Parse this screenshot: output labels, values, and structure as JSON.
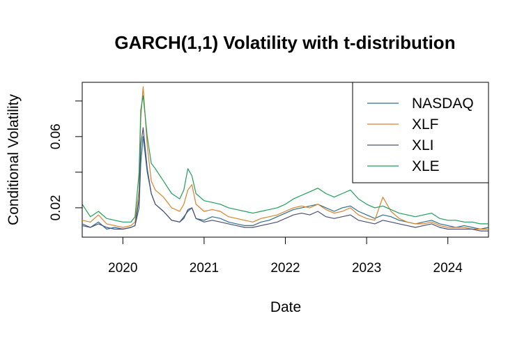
{
  "chart_data": {
    "type": "line",
    "title": "GARCH(1,1) Volatility with t-distribution",
    "xlabel": "Date",
    "ylabel": "Conditional Volatility",
    "xlim": [
      2019.5,
      2024.5
    ],
    "ylim": [
      0.0035,
      0.0905
    ],
    "x_ticks": [
      2020,
      2021,
      2022,
      2023,
      2024
    ],
    "x_tick_labels": [
      "2020",
      "2021",
      "2022",
      "2023",
      "2024"
    ],
    "y_ticks": [
      0.02,
      0.04,
      0.06,
      0.08
    ],
    "y_tick_labels": [
      "0.02",
      "",
      "0.06",
      ""
    ],
    "grid": false,
    "legend_position": "top-right",
    "series": [
      {
        "name": "NASDAQ",
        "color": "#2E6E8E",
        "x": [
          2019.5,
          2019.6,
          2019.7,
          2019.8,
          2019.9,
          2020.0,
          2020.1,
          2020.15,
          2020.2,
          2020.22,
          2020.25,
          2020.3,
          2020.35,
          2020.4,
          2020.5,
          2020.6,
          2020.7,
          2020.75,
          2020.8,
          2020.85,
          2020.9,
          2021.0,
          2021.1,
          2021.2,
          2021.3,
          2021.4,
          2021.5,
          2021.6,
          2021.7,
          2021.8,
          2021.9,
          2022.0,
          2022.1,
          2022.2,
          2022.3,
          2022.4,
          2022.5,
          2022.6,
          2022.7,
          2022.8,
          2022.9,
          2023.0,
          2023.1,
          2023.2,
          2023.3,
          2023.4,
          2023.5,
          2023.6,
          2023.7,
          2023.8,
          2023.9,
          2024.0,
          2024.1,
          2024.2,
          2024.3,
          2024.4,
          2024.5
        ],
        "values": [
          0.011,
          0.009,
          0.012,
          0.008,
          0.009,
          0.008,
          0.009,
          0.01,
          0.02,
          0.045,
          0.06,
          0.04,
          0.028,
          0.022,
          0.018,
          0.013,
          0.012,
          0.015,
          0.018,
          0.02,
          0.014,
          0.013,
          0.015,
          0.014,
          0.012,
          0.011,
          0.01,
          0.01,
          0.012,
          0.013,
          0.015,
          0.017,
          0.019,
          0.02,
          0.021,
          0.022,
          0.02,
          0.018,
          0.02,
          0.021,
          0.018,
          0.016,
          0.014,
          0.016,
          0.015,
          0.013,
          0.012,
          0.011,
          0.012,
          0.013,
          0.011,
          0.01,
          0.009,
          0.01,
          0.009,
          0.008,
          0.009
        ]
      },
      {
        "name": "XLF",
        "color": "#D9822B",
        "x": [
          2019.5,
          2019.6,
          2019.7,
          2019.8,
          2019.9,
          2020.0,
          2020.1,
          2020.15,
          2020.2,
          2020.22,
          2020.25,
          2020.3,
          2020.35,
          2020.4,
          2020.5,
          2020.6,
          2020.7,
          2020.75,
          2020.8,
          2020.85,
          2020.9,
          2021.0,
          2021.1,
          2021.2,
          2021.3,
          2021.4,
          2021.5,
          2021.6,
          2021.7,
          2021.8,
          2021.9,
          2022.0,
          2022.1,
          2022.2,
          2022.3,
          2022.4,
          2022.5,
          2022.6,
          2022.7,
          2022.8,
          2022.9,
          2023.0,
          2023.1,
          2023.2,
          2023.3,
          2023.4,
          2023.5,
          2023.6,
          2023.7,
          2023.8,
          2023.9,
          2024.0,
          2024.1,
          2024.2,
          2024.3,
          2024.4,
          2024.5
        ],
        "values": [
          0.013,
          0.012,
          0.016,
          0.011,
          0.01,
          0.009,
          0.01,
          0.012,
          0.03,
          0.07,
          0.088,
          0.055,
          0.035,
          0.03,
          0.026,
          0.02,
          0.018,
          0.022,
          0.03,
          0.033,
          0.022,
          0.018,
          0.019,
          0.018,
          0.015,
          0.014,
          0.013,
          0.012,
          0.014,
          0.015,
          0.016,
          0.018,
          0.02,
          0.021,
          0.02,
          0.022,
          0.019,
          0.017,
          0.018,
          0.02,
          0.016,
          0.014,
          0.013,
          0.026,
          0.018,
          0.014,
          0.012,
          0.011,
          0.011,
          0.012,
          0.01,
          0.009,
          0.009,
          0.009,
          0.008,
          0.008,
          0.008
        ]
      },
      {
        "name": "XLI",
        "color": "#4A4F78",
        "x": [
          2019.5,
          2019.6,
          2019.7,
          2019.8,
          2019.9,
          2020.0,
          2020.1,
          2020.15,
          2020.2,
          2020.22,
          2020.25,
          2020.3,
          2020.35,
          2020.4,
          2020.5,
          2020.6,
          2020.7,
          2020.75,
          2020.8,
          2020.85,
          2020.9,
          2021.0,
          2021.1,
          2021.2,
          2021.3,
          2021.4,
          2021.5,
          2021.6,
          2021.7,
          2021.8,
          2021.9,
          2022.0,
          2022.1,
          2022.2,
          2022.3,
          2022.4,
          2022.5,
          2022.6,
          2022.7,
          2022.8,
          2022.9,
          2023.0,
          2023.1,
          2023.2,
          2023.3,
          2023.4,
          2023.5,
          2023.6,
          2023.7,
          2023.8,
          2023.9,
          2024.0,
          2024.1,
          2024.2,
          2024.3,
          2024.4,
          2024.5
        ],
        "values": [
          0.01,
          0.009,
          0.011,
          0.009,
          0.008,
          0.008,
          0.009,
          0.01,
          0.025,
          0.055,
          0.065,
          0.042,
          0.028,
          0.022,
          0.018,
          0.013,
          0.012,
          0.014,
          0.019,
          0.02,
          0.014,
          0.012,
          0.013,
          0.012,
          0.011,
          0.01,
          0.009,
          0.009,
          0.01,
          0.011,
          0.012,
          0.014,
          0.016,
          0.017,
          0.016,
          0.018,
          0.015,
          0.014,
          0.015,
          0.016,
          0.013,
          0.012,
          0.011,
          0.013,
          0.012,
          0.011,
          0.01,
          0.009,
          0.01,
          0.011,
          0.009,
          0.008,
          0.008,
          0.008,
          0.008,
          0.007,
          0.007
        ]
      },
      {
        "name": "XLE",
        "color": "#1E9E5A",
        "x": [
          2019.5,
          2019.6,
          2019.7,
          2019.8,
          2019.9,
          2020.0,
          2020.1,
          2020.15,
          2020.2,
          2020.22,
          2020.25,
          2020.3,
          2020.35,
          2020.4,
          2020.5,
          2020.6,
          2020.7,
          2020.75,
          2020.8,
          2020.85,
          2020.9,
          2021.0,
          2021.1,
          2021.2,
          2021.3,
          2021.4,
          2021.5,
          2021.6,
          2021.7,
          2021.8,
          2021.9,
          2022.0,
          2022.1,
          2022.2,
          2022.3,
          2022.4,
          2022.5,
          2022.6,
          2022.7,
          2022.8,
          2022.9,
          2023.0,
          2023.1,
          2023.2,
          2023.3,
          2023.4,
          2023.5,
          2023.6,
          2023.7,
          2023.8,
          2023.9,
          2024.0,
          2024.1,
          2024.2,
          2024.3,
          2024.4,
          2024.5
        ],
        "values": [
          0.022,
          0.015,
          0.018,
          0.014,
          0.013,
          0.012,
          0.012,
          0.015,
          0.04,
          0.075,
          0.083,
          0.06,
          0.045,
          0.042,
          0.035,
          0.028,
          0.025,
          0.03,
          0.042,
          0.038,
          0.028,
          0.024,
          0.023,
          0.022,
          0.02,
          0.019,
          0.018,
          0.017,
          0.018,
          0.019,
          0.02,
          0.022,
          0.025,
          0.027,
          0.029,
          0.031,
          0.028,
          0.026,
          0.028,
          0.03,
          0.025,
          0.022,
          0.02,
          0.021,
          0.019,
          0.017,
          0.016,
          0.015,
          0.016,
          0.017,
          0.014,
          0.013,
          0.013,
          0.012,
          0.012,
          0.011,
          0.011
        ]
      }
    ]
  }
}
